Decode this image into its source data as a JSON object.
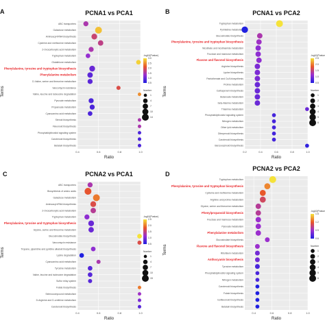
{
  "figure": {
    "panel_labels": [
      "A",
      "B",
      "C",
      "D"
    ],
    "legend_color_title": "-log10(Pvalue)",
    "legend_size_title": "Number"
  },
  "chart_data": [
    {
      "type": "scatter",
      "panel": "A",
      "title": "PCNA1 vs PCA1",
      "xlabel": "Ratio",
      "ylabel": "Terms",
      "xlim": [
        0.4,
        1.0
      ],
      "x_ticks": [
        "0.4",
        "0.6",
        "0.8",
        "1.0"
      ],
      "grid": true,
      "legend_placement": "right",
      "color_scale": {
        "min": 0.5,
        "max": 3.0,
        "ticks": [
          "3.0",
          "2.5",
          "2.0",
          "1.5",
          "1.0",
          "0.5"
        ]
      },
      "size_scale": {
        "ticks": [
          "1",
          "4",
          "7",
          "10",
          "14"
        ]
      },
      "terms": [
        {
          "name": "ABC transporters",
          "ratio": 0.48,
          "pval": 1.5,
          "number": 4,
          "highlight": false
        },
        {
          "name": "Galactose metabolism",
          "ratio": 0.6,
          "pval": 2.8,
          "number": 10,
          "highlight": false
        },
        {
          "name": "Aminoacyl-tRNA biosynthesis",
          "ratio": 0.56,
          "pval": 1.8,
          "number": 6,
          "highlight": false
        },
        {
          "name": "Cysteine and methionine metabolism",
          "ratio": 0.62,
          "pval": 1.7,
          "number": 5,
          "highlight": false
        },
        {
          "name": "2-Oxocarboxylic acid metabolism",
          "ratio": 0.53,
          "pval": 1.5,
          "number": 4,
          "highlight": false
        },
        {
          "name": "Tryptophan metabolism",
          "ratio": 0.5,
          "pval": 1.3,
          "number": 3,
          "highlight": false
        },
        {
          "name": "Glutathione metabolism",
          "ratio": 0.98,
          "pval": 2.9,
          "number": 3,
          "highlight": false
        },
        {
          "name": "Phenylalanine, tyrosine and tryptophan biosynthesis",
          "ratio": 0.54,
          "pval": 1.0,
          "number": 6,
          "highlight": true
        },
        {
          "name": "Phenylalanine metabolism",
          "ratio": 0.52,
          "pval": 0.9,
          "number": 5,
          "highlight": true
        },
        {
          "name": "D-Valine, serine and threonine metabolism",
          "ratio": 0.52,
          "pval": 0.9,
          "number": 4,
          "highlight": false
        },
        {
          "name": "Vancomycin resistance",
          "ratio": 0.79,
          "pval": 2.0,
          "number": 2,
          "highlight": false
        },
        {
          "name": "Valine, leucine and isoleucine degradation",
          "ratio": 0.99,
          "pval": 2.5,
          "number": 1,
          "highlight": false
        },
        {
          "name": "Pyruvate metabolism",
          "ratio": 0.53,
          "pval": 0.8,
          "number": 4,
          "highlight": false
        },
        {
          "name": "Propanoate metabolism",
          "ratio": 0.54,
          "pval": 0.8,
          "number": 4,
          "highlight": false
        },
        {
          "name": "Cyanoamino acid metabolism",
          "ratio": 0.52,
          "pval": 0.8,
          "number": 3,
          "highlight": false
        },
        {
          "name": "Steroid biosynthesis",
          "ratio": 0.99,
          "pval": 1.5,
          "number": 1,
          "highlight": false
        },
        {
          "name": "Flavonoid biosynthesis",
          "ratio": 0.99,
          "pval": 1.5,
          "number": 1,
          "highlight": false
        },
        {
          "name": "Phosphatidylinositol signaling system",
          "ratio": 0.99,
          "pval": 0.8,
          "number": 1,
          "highlight": false
        },
        {
          "name": "Carotenoid biosynthesis",
          "ratio": 0.99,
          "pval": 0.8,
          "number": 1,
          "highlight": false
        },
        {
          "name": "Betalain biosynthesis",
          "ratio": 0.99,
          "pval": 0.8,
          "number": 1,
          "highlight": false
        }
      ]
    },
    {
      "type": "scatter",
      "panel": "B",
      "title": "PCNA1 vs PCA2",
      "xlabel": "Ratio",
      "ylabel": "Terms",
      "xlim": [
        0.2,
        1.0
      ],
      "x_ticks": [
        "0.2",
        "0.4",
        "0.6",
        "0.8",
        "1.0"
      ],
      "grid": true,
      "legend_placement": "right",
      "color_scale": {
        "min": 0.5,
        "max": 2.5,
        "ticks": [
          "2.5",
          "2.0",
          "1.5",
          "1.0",
          "0.5"
        ]
      },
      "size_scale": {
        "ticks": [
          "1",
          "2",
          "3",
          "4",
          "5",
          "6"
        ]
      },
      "terms": [
        {
          "name": "Tryptophan metabolism",
          "ratio": 0.64,
          "pval": 2.6,
          "number": 6,
          "highlight": false
        },
        {
          "name": "Pyrimidine metabolism",
          "ratio": 0.2,
          "pval": 0.5,
          "number": 5,
          "highlight": false
        },
        {
          "name": "Glucosinolate biosynthesis",
          "ratio": 0.39,
          "pval": 1.3,
          "number": 3,
          "highlight": false
        },
        {
          "name": "Phenylalanine, tyrosine and tryptophan biosynthesis",
          "ratio": 0.38,
          "pval": 1.2,
          "number": 3,
          "highlight": true
        },
        {
          "name": "Nicotinate and nicotinamide metabolism",
          "ratio": 0.37,
          "pval": 1.1,
          "number": 3,
          "highlight": false
        },
        {
          "name": "Fructose and mannose metabolism",
          "ratio": 0.37,
          "pval": 1.1,
          "number": 3,
          "highlight": false
        },
        {
          "name": "Flavone and flavonol biosynthesis",
          "ratio": 0.38,
          "pval": 1.1,
          "number": 3,
          "highlight": true
        },
        {
          "name": "Arginine biosynthesis",
          "ratio": 0.36,
          "pval": 1.0,
          "number": 3,
          "highlight": false
        },
        {
          "name": "Lysine biosynthesis",
          "ratio": 0.36,
          "pval": 1.0,
          "number": 3,
          "highlight": false
        },
        {
          "name": "Pantothenate and CoA biosynthesis",
          "ratio": 0.36,
          "pval": 1.0,
          "number": 3,
          "highlight": false
        },
        {
          "name": "Proline metabolism",
          "ratio": 0.36,
          "pval": 0.9,
          "number": 3,
          "highlight": false
        },
        {
          "name": "Carbapenem biosynthesis",
          "ratio": 0.36,
          "pval": 0.9,
          "number": 3,
          "highlight": false
        },
        {
          "name": "Butanoate metabolism",
          "ratio": 0.36,
          "pval": 0.9,
          "number": 3,
          "highlight": false
        },
        {
          "name": "beta-Alanine metabolism",
          "ratio": 0.36,
          "pval": 0.9,
          "number": 3,
          "highlight": false
        },
        {
          "name": "Thiamine metabolism",
          "ratio": 0.99,
          "pval": 0.9,
          "number": 1,
          "highlight": false
        },
        {
          "name": "Phosphatidylinositol signaling system",
          "ratio": 0.57,
          "pval": 0.7,
          "number": 1,
          "highlight": false
        },
        {
          "name": "Nitrogen metabolism",
          "ratio": 0.57,
          "pval": 0.7,
          "number": 1,
          "highlight": false
        },
        {
          "name": "Other ipid metabolism",
          "ratio": 0.57,
          "pval": 0.7,
          "number": 1,
          "highlight": false
        },
        {
          "name": "Diterpenoid biosynthesis",
          "ratio": 0.57,
          "pval": 0.7,
          "number": 1,
          "highlight": false
        },
        {
          "name": "Carotenoid biosynthesis",
          "ratio": 0.57,
          "pval": 0.7,
          "number": 1,
          "highlight": false
        },
        {
          "name": "Benzoxazinoid biosynthesis",
          "ratio": 0.99,
          "pval": 0.6,
          "number": 1,
          "highlight": false
        }
      ]
    },
    {
      "type": "scatter",
      "panel": "C",
      "title": "PCNA2 vs PCA1",
      "xlabel": "Ratio",
      "ylabel": "Terms",
      "xlim": [
        0.4,
        1.0
      ],
      "x_ticks": [
        "0.4",
        "0.6",
        "0.8",
        "1.0"
      ],
      "grid": true,
      "legend_placement": "right",
      "color_scale": {
        "min": 0.5,
        "max": 2.5,
        "ticks": [
          "2.5",
          "2.0",
          "1.5",
          "1.0",
          "0.5"
        ]
      },
      "size_scale": {
        "ticks": [
          "1",
          "4",
          "7",
          "10",
          "15"
        ]
      },
      "terms": [
        {
          "name": "ABC transporters",
          "ratio": 0.52,
          "pval": 1.3,
          "number": 4,
          "highlight": false
        },
        {
          "name": "Biosynthesis of amino acids",
          "ratio": 0.5,
          "pval": 1.8,
          "number": 10,
          "highlight": false
        },
        {
          "name": "Galactose metabolism",
          "ratio": 0.58,
          "pval": 2.0,
          "number": 10,
          "highlight": false
        },
        {
          "name": "Aminoacyl-tRNA biosynthesis",
          "ratio": 0.55,
          "pval": 1.7,
          "number": 6,
          "highlight": false
        },
        {
          "name": "2-Oxocarboxylic acid metabolism",
          "ratio": 0.55,
          "pval": 1.4,
          "number": 5,
          "highlight": false
        },
        {
          "name": "Tryptophan metabolism",
          "ratio": 0.49,
          "pval": 1.1,
          "number": 4,
          "highlight": false
        },
        {
          "name": "Phenylalanine, tyrosine and tryptophan biosynthesis",
          "ratio": 0.53,
          "pval": 0.9,
          "number": 6,
          "highlight": true
        },
        {
          "name": "Glycine, serine and threonine metabolism",
          "ratio": 0.53,
          "pval": 0.9,
          "number": 5,
          "highlight": false
        },
        {
          "name": "Glucosinolate biosynthesis",
          "ratio": 0.99,
          "pval": 2.6,
          "number": 3,
          "highlight": false
        },
        {
          "name": "Vancomycin resistance",
          "ratio": 0.99,
          "pval": 1.7,
          "number": 2,
          "highlight": false
        },
        {
          "name": "Tropane, piperidine and pyridine alkaloid biosynthesis",
          "ratio": 0.55,
          "pval": 1.1,
          "number": 3,
          "highlight": false
        },
        {
          "name": "Lysine degradation",
          "ratio": 0.44,
          "pval": 0.5,
          "number": 3,
          "highlight": false
        },
        {
          "name": "Cyanoamino acid metabolism",
          "ratio": 0.6,
          "pval": 1.3,
          "number": 2,
          "highlight": false
        },
        {
          "name": "Tyrosine metabolism",
          "ratio": 0.52,
          "pval": 0.8,
          "number": 3,
          "highlight": false
        },
        {
          "name": "Valine, leucine and isoleucine degradation",
          "ratio": 0.52,
          "pval": 0.8,
          "number": 3,
          "highlight": false
        },
        {
          "name": "Sulfur relay system",
          "ratio": 0.52,
          "pval": 0.8,
          "number": 2,
          "highlight": false
        },
        {
          "name": "Folate biosynthesis",
          "ratio": 0.99,
          "pval": 2.0,
          "number": 1,
          "highlight": false
        },
        {
          "name": "Selenocompound metabolism",
          "ratio": 0.99,
          "pval": 1.2,
          "number": 1,
          "highlight": false
        },
        {
          "name": "D-Arginine and D-ornithine metabolism",
          "ratio": 0.99,
          "pval": 1.0,
          "number": 1,
          "highlight": false
        },
        {
          "name": "Carotenoid biosynthesis",
          "ratio": 0.99,
          "pval": 0.8,
          "number": 1,
          "highlight": false
        }
      ]
    },
    {
      "type": "scatter",
      "panel": "D",
      "title": "PCNA2 vs PCA2",
      "xlabel": "Ratio",
      "ylabel": "Terms",
      "xlim": [
        0.3,
        1.0
      ],
      "x_ticks": [
        "0.4",
        "0.6",
        "0.8",
        "1.0"
      ],
      "grid": true,
      "legend_placement": "right",
      "color_scale": {
        "min": 0.6,
        "max": 1.5,
        "ticks": [
          "1.5",
          "1.2",
          "0.9",
          "0.6"
        ]
      },
      "size_scale": {
        "ticks": [
          "1",
          "2",
          "3",
          "4",
          "5",
          "6"
        ]
      },
      "terms": [
        {
          "name": "Tryptophan metabolism",
          "ratio": 0.61,
          "pval": 1.5,
          "number": 6,
          "highlight": false
        },
        {
          "name": "Phenylalanine, tyrosine and tryptophan biosynthesis",
          "ratio": 0.55,
          "pval": 1.3,
          "number": 4,
          "highlight": true
        },
        {
          "name": "Cysteine and methionine metabolism",
          "ratio": 0.5,
          "pval": 1.2,
          "number": 4,
          "highlight": false
        },
        {
          "name": "Arginine and proline metabolism",
          "ratio": 0.5,
          "pval": 1.1,
          "number": 4,
          "highlight": false
        },
        {
          "name": "Glycine, serine and threonine metabolism",
          "ratio": 0.45,
          "pval": 1.0,
          "number": 3,
          "highlight": false
        },
        {
          "name": "Phenylpropanoid biosynthesis",
          "ratio": 0.45,
          "pval": 1.0,
          "number": 3,
          "highlight": true
        },
        {
          "name": "Fructose and mannose metabolism",
          "ratio": 0.45,
          "pval": 0.9,
          "number": 3,
          "highlight": false
        },
        {
          "name": "Pyruvate metabolism",
          "ratio": 0.45,
          "pval": 0.9,
          "number": 3,
          "highlight": false
        },
        {
          "name": "Phenylalanine metabolism",
          "ratio": 0.45,
          "pval": 0.9,
          "number": 3,
          "highlight": true
        },
        {
          "name": "Glucosinolate biosynthesis",
          "ratio": 0.55,
          "pval": 0.9,
          "number": 2,
          "highlight": false
        },
        {
          "name": "Flavone and flavonol biosynthesis",
          "ratio": 0.44,
          "pval": 0.9,
          "number": 2,
          "highlight": true
        },
        {
          "name": "Riboflavin metabolism",
          "ratio": 0.44,
          "pval": 0.8,
          "number": 2,
          "highlight": false
        },
        {
          "name": "Anthocyanin biosynthesis",
          "ratio": 0.44,
          "pval": 0.8,
          "number": 2,
          "highlight": true
        },
        {
          "name": "Tyrosine metabolism",
          "ratio": 0.44,
          "pval": 0.7,
          "number": 2,
          "highlight": false
        },
        {
          "name": "Phosphatidylinositol signaling system",
          "ratio": 0.44,
          "pval": 0.7,
          "number": 1,
          "highlight": false
        },
        {
          "name": "Nitrogen metabolism",
          "ratio": 0.44,
          "pval": 0.7,
          "number": 1,
          "highlight": false
        },
        {
          "name": "Carotenoid biosynthesis",
          "ratio": 0.44,
          "pval": 0.6,
          "number": 1,
          "highlight": false
        },
        {
          "name": "Folate biosynthesis",
          "ratio": 0.44,
          "pval": 0.6,
          "number": 1,
          "highlight": false
        },
        {
          "name": "Isoflavonoid biosynthesis",
          "ratio": 0.44,
          "pval": 0.6,
          "number": 1,
          "highlight": false
        },
        {
          "name": "Betalain biosynthesis",
          "ratio": 0.44,
          "pval": 0.6,
          "number": 1,
          "highlight": false
        }
      ]
    }
  ]
}
